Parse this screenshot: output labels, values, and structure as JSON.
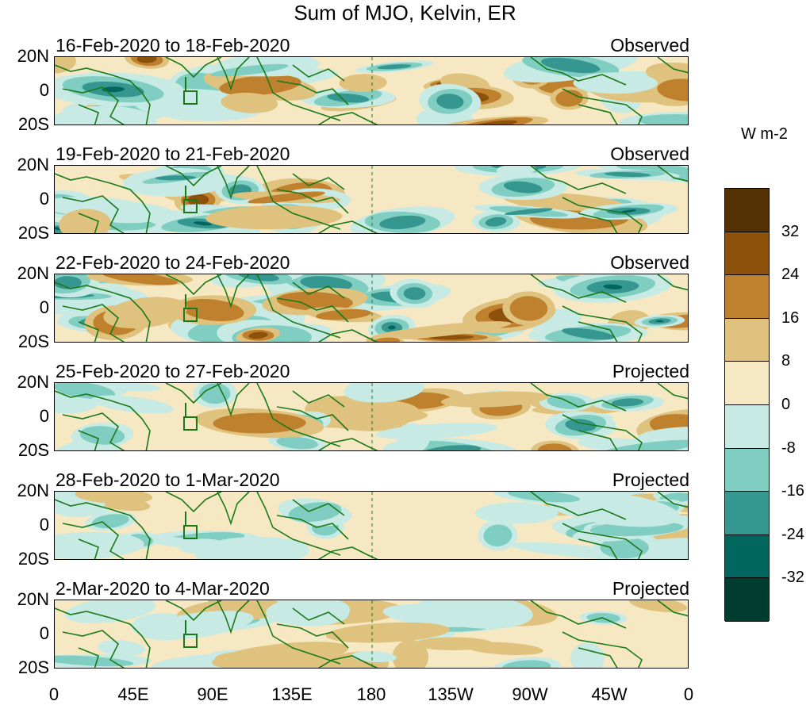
{
  "title": "Sum of MJO, Kelvin, ER",
  "panels": [
    {
      "date_range": "16-Feb-2020 to 18-Feb-2020",
      "status": "Observed",
      "strength": 1.0,
      "seed": 11
    },
    {
      "date_range": "19-Feb-2020 to 21-Feb-2020",
      "status": "Observed",
      "strength": 1.0,
      "seed": 23
    },
    {
      "date_range": "22-Feb-2020 to 24-Feb-2020",
      "status": "Observed",
      "strength": 0.95,
      "seed": 37
    },
    {
      "date_range": "25-Feb-2020 to 27-Feb-2020",
      "status": "Projected",
      "strength": 0.75,
      "seed": 41
    },
    {
      "date_range": "28-Feb-2020 to 1-Mar-2020",
      "status": "Projected",
      "strength": 0.5,
      "seed": 53
    },
    {
      "date_range": "2-Mar-2020 to 4-Mar-2020",
      "status": "Projected",
      "strength": 0.45,
      "seed": 67
    }
  ],
  "lat_labels": [
    "20N",
    "0",
    "20S"
  ],
  "lon_labels": [
    "0",
    "45E",
    "90E",
    "135E",
    "180",
    "135W",
    "90W",
    "45W",
    "0"
  ],
  "units": "W m-2",
  "colorbar": {
    "ticks": [
      "32",
      "24",
      "16",
      "8",
      "0",
      "-8",
      "-16",
      "-24",
      "-32"
    ],
    "colors": [
      "#543005",
      "#8c510a",
      "#bf812d",
      "#dfc27d",
      "#f6e8c3",
      "#c7eae5",
      "#80cdc1",
      "#35978f",
      "#01665e",
      "#003c30"
    ]
  },
  "colors": {
    "coastline": "#1a7a1a"
  }
}
